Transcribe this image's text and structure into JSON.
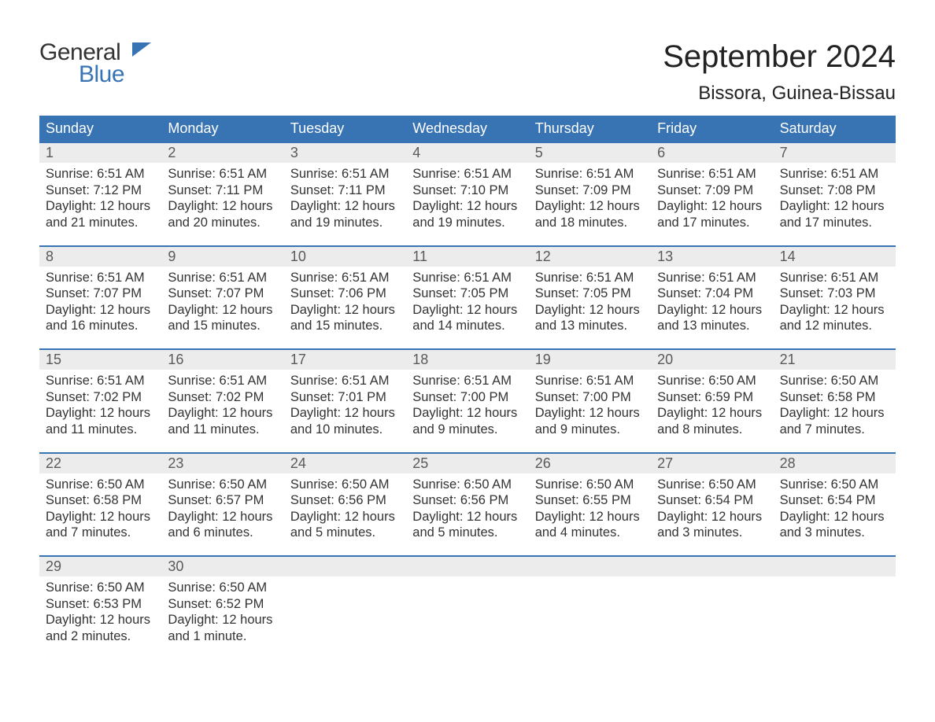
{
  "logo": {
    "line1": "General",
    "line2": "Blue"
  },
  "header": {
    "title": "September 2024",
    "location": "Bissora, Guinea-Bissau"
  },
  "colors": {
    "accent": "#3873b3",
    "header_bg": "#3873b3",
    "header_text": "#ffffff",
    "daynum_bg": "#ececec",
    "daynum_text": "#5a5a5a",
    "body_text": "#333333",
    "background": "#ffffff"
  },
  "typography": {
    "month_title_size_pt": 30,
    "location_size_pt": 18,
    "weekday_size_pt": 14,
    "daynum_size_pt": 14,
    "body_size_pt": 12
  },
  "calendar": {
    "columns": 7,
    "weekdays": [
      "Sunday",
      "Monday",
      "Tuesday",
      "Wednesday",
      "Thursday",
      "Friday",
      "Saturday"
    ],
    "weeks": [
      [
        {
          "n": "1",
          "sunrise": "Sunrise: 6:51 AM",
          "sunset": "Sunset: 7:12 PM",
          "daylight": "Daylight: 12 hours and 21 minutes."
        },
        {
          "n": "2",
          "sunrise": "Sunrise: 6:51 AM",
          "sunset": "Sunset: 7:11 PM",
          "daylight": "Daylight: 12 hours and 20 minutes."
        },
        {
          "n": "3",
          "sunrise": "Sunrise: 6:51 AM",
          "sunset": "Sunset: 7:11 PM",
          "daylight": "Daylight: 12 hours and 19 minutes."
        },
        {
          "n": "4",
          "sunrise": "Sunrise: 6:51 AM",
          "sunset": "Sunset: 7:10 PM",
          "daylight": "Daylight: 12 hours and 19 minutes."
        },
        {
          "n": "5",
          "sunrise": "Sunrise: 6:51 AM",
          "sunset": "Sunset: 7:09 PM",
          "daylight": "Daylight: 12 hours and 18 minutes."
        },
        {
          "n": "6",
          "sunrise": "Sunrise: 6:51 AM",
          "sunset": "Sunset: 7:09 PM",
          "daylight": "Daylight: 12 hours and 17 minutes."
        },
        {
          "n": "7",
          "sunrise": "Sunrise: 6:51 AM",
          "sunset": "Sunset: 7:08 PM",
          "daylight": "Daylight: 12 hours and 17 minutes."
        }
      ],
      [
        {
          "n": "8",
          "sunrise": "Sunrise: 6:51 AM",
          "sunset": "Sunset: 7:07 PM",
          "daylight": "Daylight: 12 hours and 16 minutes."
        },
        {
          "n": "9",
          "sunrise": "Sunrise: 6:51 AM",
          "sunset": "Sunset: 7:07 PM",
          "daylight": "Daylight: 12 hours and 15 minutes."
        },
        {
          "n": "10",
          "sunrise": "Sunrise: 6:51 AM",
          "sunset": "Sunset: 7:06 PM",
          "daylight": "Daylight: 12 hours and 15 minutes."
        },
        {
          "n": "11",
          "sunrise": "Sunrise: 6:51 AM",
          "sunset": "Sunset: 7:05 PM",
          "daylight": "Daylight: 12 hours and 14 minutes."
        },
        {
          "n": "12",
          "sunrise": "Sunrise: 6:51 AM",
          "sunset": "Sunset: 7:05 PM",
          "daylight": "Daylight: 12 hours and 13 minutes."
        },
        {
          "n": "13",
          "sunrise": "Sunrise: 6:51 AM",
          "sunset": "Sunset: 7:04 PM",
          "daylight": "Daylight: 12 hours and 13 minutes."
        },
        {
          "n": "14",
          "sunrise": "Sunrise: 6:51 AM",
          "sunset": "Sunset: 7:03 PM",
          "daylight": "Daylight: 12 hours and 12 minutes."
        }
      ],
      [
        {
          "n": "15",
          "sunrise": "Sunrise: 6:51 AM",
          "sunset": "Sunset: 7:02 PM",
          "daylight": "Daylight: 12 hours and 11 minutes."
        },
        {
          "n": "16",
          "sunrise": "Sunrise: 6:51 AM",
          "sunset": "Sunset: 7:02 PM",
          "daylight": "Daylight: 12 hours and 11 minutes."
        },
        {
          "n": "17",
          "sunrise": "Sunrise: 6:51 AM",
          "sunset": "Sunset: 7:01 PM",
          "daylight": "Daylight: 12 hours and 10 minutes."
        },
        {
          "n": "18",
          "sunrise": "Sunrise: 6:51 AM",
          "sunset": "Sunset: 7:00 PM",
          "daylight": "Daylight: 12 hours and 9 minutes."
        },
        {
          "n": "19",
          "sunrise": "Sunrise: 6:51 AM",
          "sunset": "Sunset: 7:00 PM",
          "daylight": "Daylight: 12 hours and 9 minutes."
        },
        {
          "n": "20",
          "sunrise": "Sunrise: 6:50 AM",
          "sunset": "Sunset: 6:59 PM",
          "daylight": "Daylight: 12 hours and 8 minutes."
        },
        {
          "n": "21",
          "sunrise": "Sunrise: 6:50 AM",
          "sunset": "Sunset: 6:58 PM",
          "daylight": "Daylight: 12 hours and 7 minutes."
        }
      ],
      [
        {
          "n": "22",
          "sunrise": "Sunrise: 6:50 AM",
          "sunset": "Sunset: 6:58 PM",
          "daylight": "Daylight: 12 hours and 7 minutes."
        },
        {
          "n": "23",
          "sunrise": "Sunrise: 6:50 AM",
          "sunset": "Sunset: 6:57 PM",
          "daylight": "Daylight: 12 hours and 6 minutes."
        },
        {
          "n": "24",
          "sunrise": "Sunrise: 6:50 AM",
          "sunset": "Sunset: 6:56 PM",
          "daylight": "Daylight: 12 hours and 5 minutes."
        },
        {
          "n": "25",
          "sunrise": "Sunrise: 6:50 AM",
          "sunset": "Sunset: 6:56 PM",
          "daylight": "Daylight: 12 hours and 5 minutes."
        },
        {
          "n": "26",
          "sunrise": "Sunrise: 6:50 AM",
          "sunset": "Sunset: 6:55 PM",
          "daylight": "Daylight: 12 hours and 4 minutes."
        },
        {
          "n": "27",
          "sunrise": "Sunrise: 6:50 AM",
          "sunset": "Sunset: 6:54 PM",
          "daylight": "Daylight: 12 hours and 3 minutes."
        },
        {
          "n": "28",
          "sunrise": "Sunrise: 6:50 AM",
          "sunset": "Sunset: 6:54 PM",
          "daylight": "Daylight: 12 hours and 3 minutes."
        }
      ],
      [
        {
          "n": "29",
          "sunrise": "Sunrise: 6:50 AM",
          "sunset": "Sunset: 6:53 PM",
          "daylight": "Daylight: 12 hours and 2 minutes."
        },
        {
          "n": "30",
          "sunrise": "Sunrise: 6:50 AM",
          "sunset": "Sunset: 6:52 PM",
          "daylight": "Daylight: 12 hours and 1 minute."
        },
        null,
        null,
        null,
        null,
        null
      ]
    ]
  }
}
